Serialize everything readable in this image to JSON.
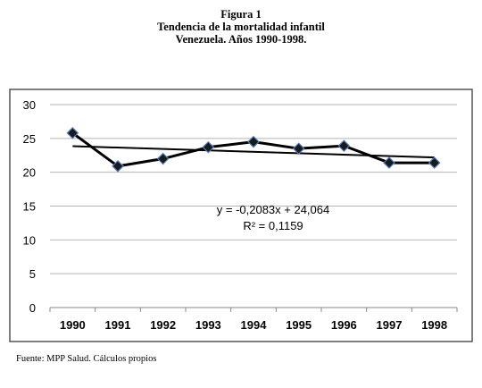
{
  "header": {
    "line1": "Figura 1",
    "line2": "Tendencia de la mortalidad infantil",
    "line3": "Venezuela.  Años 1990-1998."
  },
  "source": "Fuente: MPP Salud.   Cálculos propios",
  "chart_data": {
    "type": "line",
    "title": "",
    "xlabel": "",
    "ylabel": "",
    "categories": [
      "1990",
      "1991",
      "1992",
      "1993",
      "1994",
      "1995",
      "1996",
      "1997",
      "1998"
    ],
    "series": [
      {
        "values": [
          25.8,
          20.9,
          22.0,
          23.7,
          24.5,
          23.5,
          23.9,
          21.4,
          21.4
        ],
        "color": "#000000",
        "marker": "diamond"
      }
    ],
    "trendline": {
      "type": "linear",
      "slope": -0.2083,
      "intercept": 24.064
    },
    "trendline_label": "y = -0,2083x + 24,064",
    "r_squared_label": "R² = 0,1159",
    "ylim": [
      0,
      30
    ],
    "yticks": [
      0,
      5,
      10,
      15,
      20,
      25,
      30
    ],
    "grid": "horizontal",
    "legend": "none"
  }
}
